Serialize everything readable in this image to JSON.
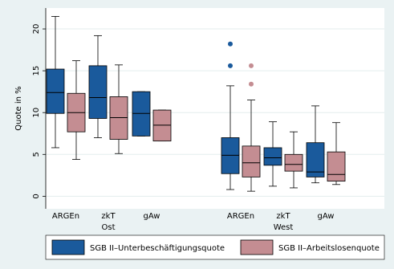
{
  "chart_data": {
    "type": "boxplot",
    "ylabel": "Quote in %",
    "ylim": [
      -1.5,
      22.5
    ],
    "yticks": [
      0,
      5,
      10,
      15,
      20
    ],
    "grid": true,
    "legend_position": "bottom",
    "colors": {
      "background": "#eaf2f3",
      "plot_bg": "#ffffff",
      "grid": "#e3eded"
    },
    "groups": [
      {
        "label": "Ost",
        "categories": [
          "ARGEn",
          "zkT",
          "gAw"
        ]
      },
      {
        "label": "West",
        "categories": [
          "ARGEn",
          "zkT",
          "gAw"
        ]
      }
    ],
    "series": [
      {
        "name": "SGB II–Unterbeschäftigungsquote",
        "color": "#1a5a9c",
        "boxes": [
          {
            "group": "Ost",
            "category": "ARGEn",
            "whisker_low": 5.8,
            "q1": 9.9,
            "median": 12.4,
            "q3": 15.2,
            "whisker_high": 21.5,
            "outliers": []
          },
          {
            "group": "Ost",
            "category": "zkT",
            "whisker_low": 7.0,
            "q1": 9.3,
            "median": 11.8,
            "q3": 15.6,
            "whisker_high": 19.2,
            "outliers": []
          },
          {
            "group": "Ost",
            "category": "gAw",
            "whisker_low": 7.2,
            "q1": 7.2,
            "median": 9.9,
            "q3": 12.5,
            "whisker_high": 12.5,
            "outliers": []
          },
          {
            "group": "West",
            "category": "ARGEn",
            "whisker_low": 0.8,
            "q1": 2.7,
            "median": 4.9,
            "q3": 7.0,
            "whisker_high": 13.2,
            "outliers": [
              15.6,
              18.2
            ]
          },
          {
            "group": "West",
            "category": "zkT",
            "whisker_low": 1.2,
            "q1": 3.7,
            "median": 4.6,
            "q3": 5.8,
            "whisker_high": 8.9,
            "outliers": []
          },
          {
            "group": "West",
            "category": "gAw",
            "whisker_low": 1.6,
            "q1": 2.3,
            "median": 2.9,
            "q3": 6.4,
            "whisker_high": 10.8,
            "outliers": []
          }
        ]
      },
      {
        "name": "SGB II–Arbeitslosenquote",
        "color": "#c48d92",
        "boxes": [
          {
            "group": "Ost",
            "category": "ARGEn",
            "whisker_low": 4.4,
            "q1": 7.7,
            "median": 10.0,
            "q3": 12.3,
            "whisker_high": 16.2,
            "outliers": []
          },
          {
            "group": "Ost",
            "category": "zkT",
            "whisker_low": 5.1,
            "q1": 6.8,
            "median": 9.4,
            "q3": 11.9,
            "whisker_high": 15.7,
            "outliers": []
          },
          {
            "group": "Ost",
            "category": "gAw",
            "whisker_low": 6.6,
            "q1": 6.6,
            "median": 8.5,
            "q3": 10.3,
            "whisker_high": 10.3,
            "outliers": []
          },
          {
            "group": "West",
            "category": "ARGEn",
            "whisker_low": 0.6,
            "q1": 2.3,
            "median": 4.0,
            "q3": 6.0,
            "whisker_high": 11.5,
            "outliers": [
              13.4,
              15.6
            ]
          },
          {
            "group": "West",
            "category": "zkT",
            "whisker_low": 1.0,
            "q1": 3.0,
            "median": 3.8,
            "q3": 5.0,
            "whisker_high": 7.7,
            "outliers": []
          },
          {
            "group": "West",
            "category": "gAw",
            "whisker_low": 1.4,
            "q1": 1.8,
            "median": 2.6,
            "q3": 5.3,
            "whisker_high": 8.8,
            "outliers": []
          }
        ]
      }
    ]
  }
}
